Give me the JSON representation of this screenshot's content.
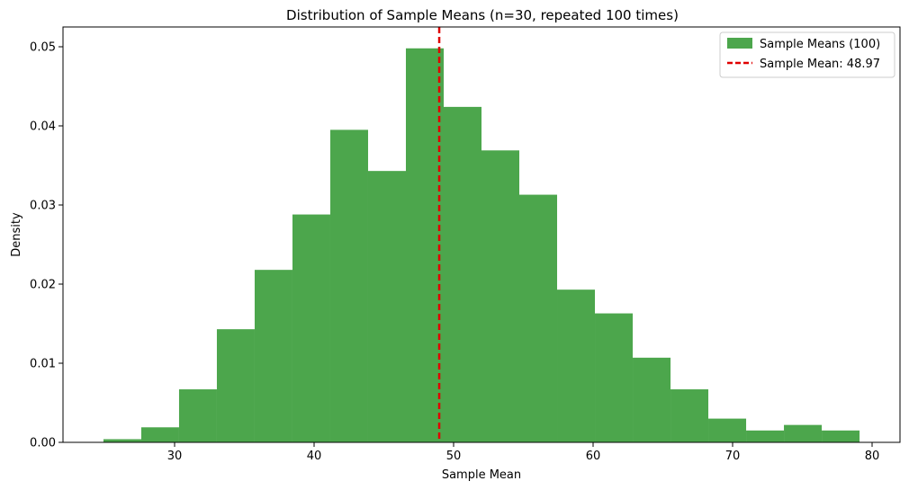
{
  "chart_data": {
    "type": "bar",
    "title": "Distribution of Sample Means (n=30, repeated 100 times)",
    "xlabel": "Sample Mean",
    "ylabel": "Density",
    "xlim": [
      22,
      82
    ],
    "ylim": [
      0,
      0.0525
    ],
    "xticks": [
      30,
      40,
      50,
      60,
      70,
      80
    ],
    "yticks": [
      0.0,
      0.01,
      0.02,
      0.03,
      0.04,
      0.05
    ],
    "ytick_labels": [
      "0.00",
      "0.01",
      "0.02",
      "0.03",
      "0.04",
      "0.05"
    ],
    "grid": false,
    "legend_position": "top-right",
    "series": [
      {
        "name": "Sample Means (100)",
        "color": "#4ca64c",
        "bin_edges": [
          24.9,
          27.61,
          30.32,
          33.03,
          35.74,
          38.45,
          41.16,
          43.87,
          46.58,
          49.29,
          52.0,
          54.71,
          57.42,
          60.13,
          62.84,
          65.55,
          68.26,
          70.97,
          73.68,
          76.39,
          79.1
        ],
        "values": [
          0.0004,
          0.0019,
          0.0067,
          0.0143,
          0.0218,
          0.0288,
          0.0395,
          0.0343,
          0.0498,
          0.0424,
          0.0369,
          0.0313,
          0.0193,
          0.0163,
          0.0107,
          0.0067,
          0.003,
          0.0015,
          0.0022,
          0.0015
        ]
      }
    ],
    "reference_line": {
      "name": "Sample Mean: 48.97",
      "x": 48.97,
      "color": "#e00000",
      "style": "dashed"
    }
  }
}
